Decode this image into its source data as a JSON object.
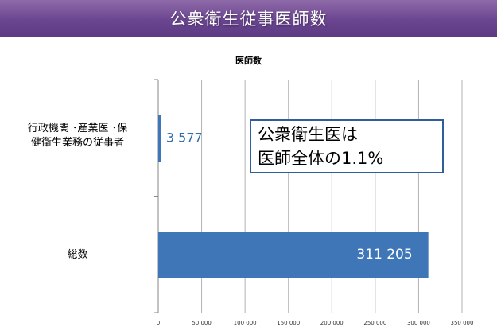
{
  "slide": {
    "title": "公衆衛生従事医師数"
  },
  "callout": {
    "line1": "公衆衛生医は",
    "line2": "医師全体の1.1%"
  },
  "colors": {
    "bar": "#3e76b8",
    "header": "#6b4690",
    "callout_border": "#2e5f9b",
    "small_value_label": "#2e6fad"
  },
  "chart_data": {
    "type": "bar",
    "orientation": "horizontal",
    "title": "医師数",
    "categories": [
      "行政機関・産業医・保健衛生業務の従事者",
      "総数"
    ],
    "category_lines": [
      [
        "行政機関 ･産業医 ･保",
        "健衛生業務の従事者"
      ],
      [
        "総数"
      ]
    ],
    "values": [
      3577,
      311205
    ],
    "value_labels": [
      "3 577",
      "311 205"
    ],
    "xlim": [
      0,
      350000
    ],
    "xticks": [
      0,
      50000,
      100000,
      150000,
      200000,
      250000,
      300000,
      350000
    ],
    "xtick_labels": [
      "0",
      "50 000",
      "100 000",
      "150 000",
      "200 000",
      "250 000",
      "300 000",
      "350 000"
    ],
    "grid": true,
    "legend": false
  }
}
